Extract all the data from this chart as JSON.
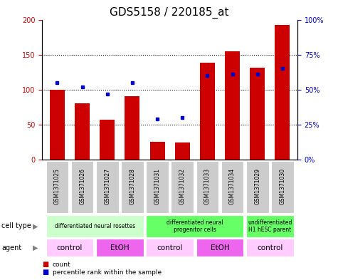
{
  "title": "GDS5158 / 220185_at",
  "samples": [
    "GSM1371025",
    "GSM1371026",
    "GSM1371027",
    "GSM1371028",
    "GSM1371031",
    "GSM1371032",
    "GSM1371033",
    "GSM1371034",
    "GSM1371029",
    "GSM1371030"
  ],
  "counts": [
    100,
    80,
    57,
    91,
    25,
    24,
    138,
    155,
    131,
    192
  ],
  "percentiles": [
    55,
    52,
    47,
    55,
    29,
    30,
    60,
    61,
    61,
    65
  ],
  "ylim_left": [
    0,
    200
  ],
  "ylim_right": [
    0,
    100
  ],
  "yticks_left": [
    0,
    50,
    100,
    150,
    200
  ],
  "yticks_right": [
    0,
    25,
    50,
    75,
    100
  ],
  "ytick_labels_left": [
    "0",
    "50",
    "100",
    "150",
    "200"
  ],
  "ytick_labels_right": [
    "0%",
    "25%",
    "50%",
    "75%",
    "100%"
  ],
  "bar_color": "#cc0000",
  "dot_color": "#0000cc",
  "cell_type_groups": [
    {
      "label": "differentiated neural rosettes",
      "start": 0,
      "end": 3,
      "color": "#ccffcc"
    },
    {
      "label": "differentiated neural\nprogenitor cells",
      "start": 4,
      "end": 7,
      "color": "#66ff66"
    },
    {
      "label": "undifferentiated\nH1 hESC parent",
      "start": 8,
      "end": 9,
      "color": "#66ff66"
    }
  ],
  "agent_groups": [
    {
      "label": "control",
      "start": 0,
      "end": 1,
      "color": "#ffccff"
    },
    {
      "label": "EtOH",
      "start": 2,
      "end": 3,
      "color": "#ee66ee"
    },
    {
      "label": "control",
      "start": 4,
      "end": 5,
      "color": "#ffccff"
    },
    {
      "label": "EtOH",
      "start": 6,
      "end": 7,
      "color": "#ee66ee"
    },
    {
      "label": "control",
      "start": 8,
      "end": 9,
      "color": "#ffccff"
    }
  ],
  "legend_count_color": "#cc0000",
  "legend_dot_color": "#0000cc",
  "bg_color": "#ffffff",
  "xtick_bg_color": "#cccccc",
  "title_fontsize": 11,
  "bar_width": 0.6
}
